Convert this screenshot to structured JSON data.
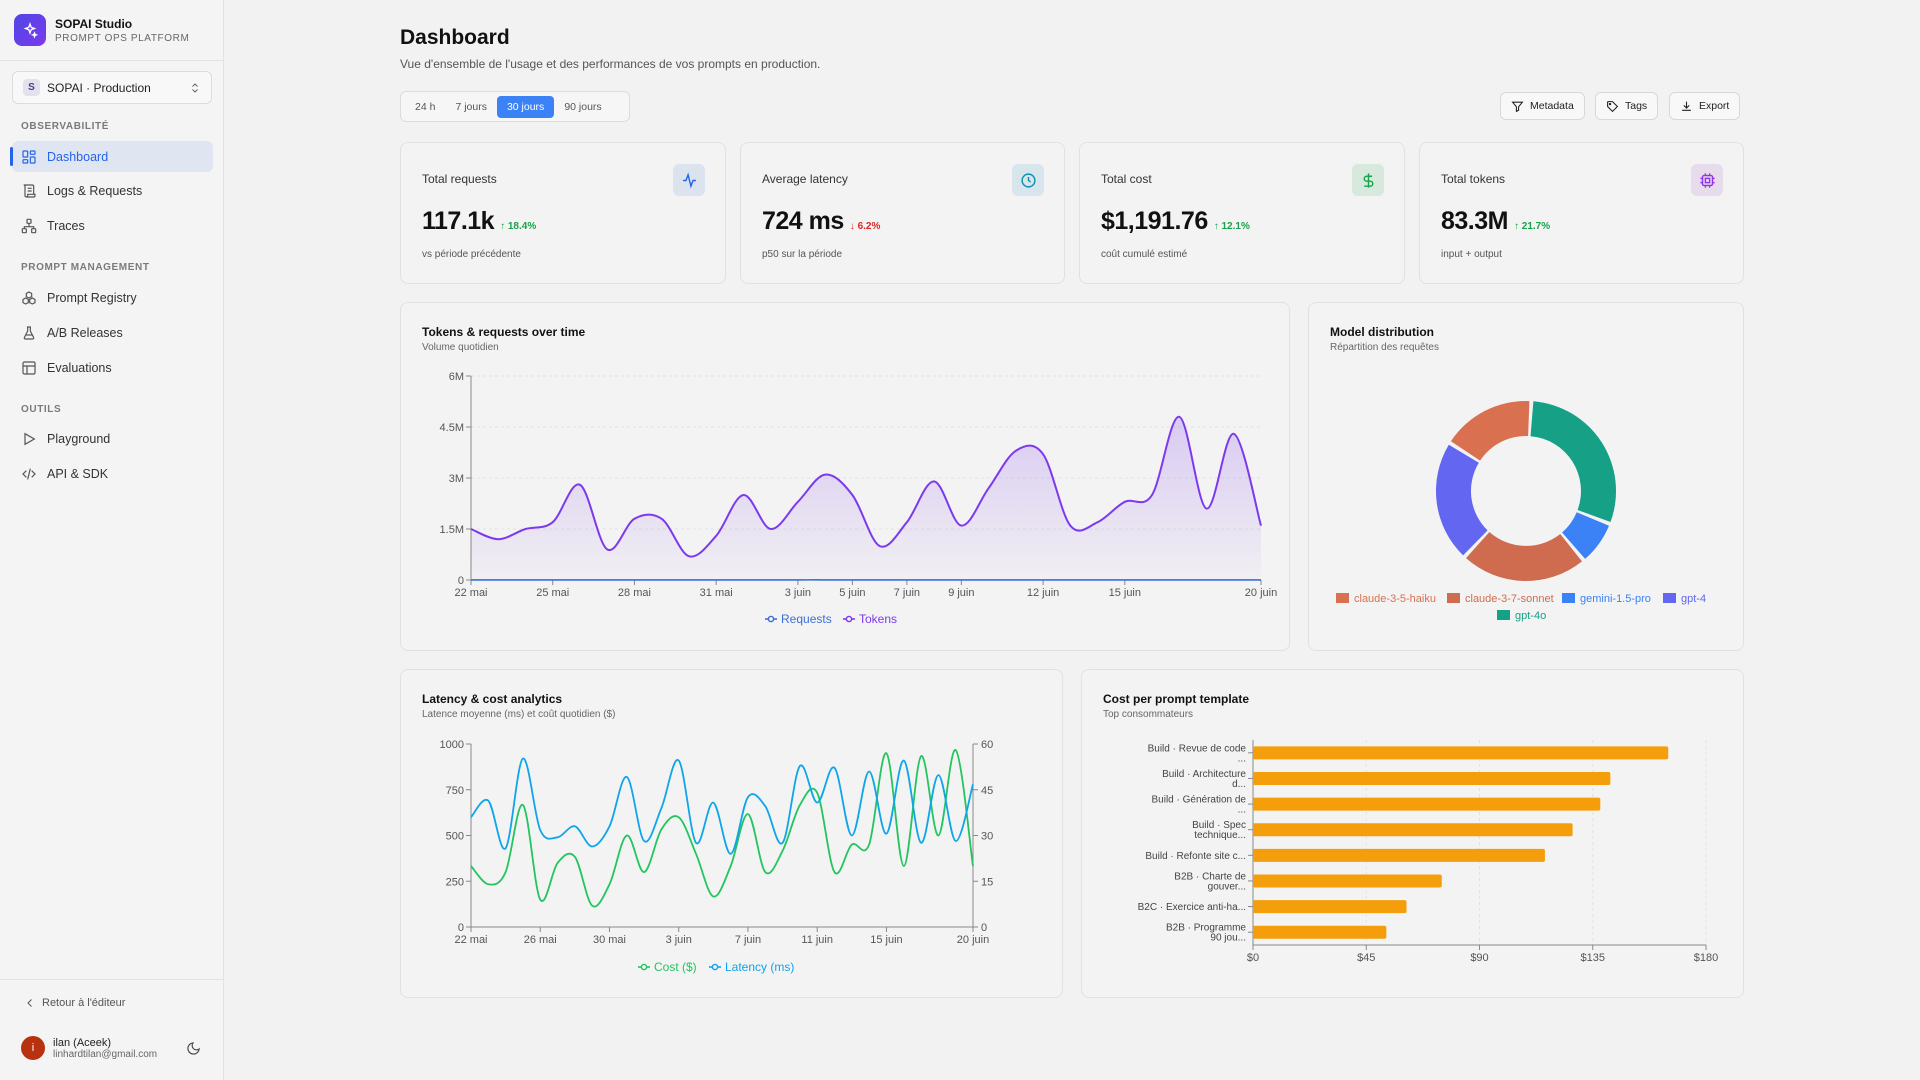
{
  "app": {
    "name": "SOPAI Studio",
    "subtitle": "PROMPT OPS PLATFORM"
  },
  "workspace": {
    "badge": "S",
    "name": "SOPAI · Production"
  },
  "sidebar": {
    "sections": [
      {
        "label": "OBSERVABILITÉ",
        "items": [
          {
            "label": "Dashboard",
            "icon": "dashboard-icon",
            "active": true
          },
          {
            "label": "Logs & Requests",
            "icon": "logs-icon"
          },
          {
            "label": "Traces",
            "icon": "traces-icon"
          }
        ]
      },
      {
        "label": "PROMPT MANAGEMENT",
        "items": [
          {
            "label": "Prompt Registry",
            "icon": "registry-icon"
          },
          {
            "label": "A/B Releases",
            "icon": "flask-icon"
          },
          {
            "label": "Evaluations",
            "icon": "table-icon"
          }
        ]
      },
      {
        "label": "OUTILS",
        "items": [
          {
            "label": "Playground",
            "icon": "play-icon"
          },
          {
            "label": "API & SDK",
            "icon": "code-icon"
          }
        ]
      }
    ],
    "back_link": "Retour à l'éditeur",
    "user": {
      "initial": "i",
      "name": "ilan (Aceek)",
      "email": "linhardtilan@gmail.com"
    }
  },
  "header": {
    "title": "Dashboard",
    "subtitle": "Vue d'ensemble de l'usage et des performances de vos prompts en production.",
    "ranges": [
      "24 h",
      "7 jours",
      "30 jours",
      "90 jours"
    ],
    "active_range": "30 jours",
    "buttons": {
      "metadata": "Metadata",
      "tags": "Tags",
      "export": "Export"
    }
  },
  "kpis": [
    {
      "label": "Total requests",
      "value": "117.1k",
      "delta": "↑ 18.4%",
      "delta_color": "#16a34a",
      "note": "vs période précédente",
      "icon": "activity-icon",
      "icon_bg": "#dbe3ee",
      "icon_color": "#2563eb"
    },
    {
      "label": "Average latency",
      "value": "724 ms",
      "delta": "↓ 6.2%",
      "delta_color": "#dc2626",
      "note": "p50 sur la période",
      "icon": "clock-icon",
      "icon_bg": "#d6e6ec",
      "icon_color": "#0891b2"
    },
    {
      "label": "Total cost",
      "value": "$1,191.76",
      "delta": "↑ 12.1%",
      "delta_color": "#16a34a",
      "note": "coût cumulé estimé",
      "icon": "dollar-icon",
      "icon_bg": "#d6e9dc",
      "icon_color": "#16a34a"
    },
    {
      "label": "Total tokens",
      "value": "83.3M",
      "delta": "↑ 21.7%",
      "delta_color": "#16a34a",
      "note": "input + output",
      "icon": "chip-icon",
      "icon_bg": "#e6dcec",
      "icon_color": "#9333ea"
    }
  ],
  "charts": {
    "tokens": {
      "title": "Tokens & requests over time",
      "subtitle": "Volume quotidien"
    },
    "models": {
      "title": "Model distribution",
      "subtitle": "Répartition des requêtes"
    },
    "latency": {
      "title": "Latency & cost analytics",
      "subtitle": "Latence moyenne (ms) et coût quotidien ($)"
    },
    "cost": {
      "title": "Cost per prompt template",
      "subtitle": "Top consommateurs"
    }
  },
  "chart_data": [
    {
      "type": "area",
      "title": "Tokens & requests over time",
      "xticks": [
        "22 mai",
        "25 mai",
        "28 mai",
        "31 mai",
        "3 juin",
        "5 juin",
        "7 juin",
        "9 juin",
        "12 juin",
        "15 juin",
        "20 juin"
      ],
      "xtick_days": [
        0,
        3,
        6,
        9,
        12,
        14,
        16,
        18,
        21,
        24,
        29
      ],
      "yticks": [
        "0",
        "1.5M",
        "3M",
        "4.5M",
        "6M"
      ],
      "ylim": [
        0,
        6000000
      ],
      "series": [
        {
          "name": "Requests",
          "color": "#3b6fd4",
          "values": [
            4000,
            3800,
            4100,
            3900,
            4200,
            4000,
            3700,
            3900,
            4100,
            4300,
            4000,
            3800,
            4200,
            4400,
            4100,
            3900,
            4000,
            4200,
            4300,
            4100,
            3900,
            4000,
            4200,
            4100,
            3800,
            4000,
            4300,
            4100,
            3900,
            4000
          ]
        },
        {
          "name": "Tokens",
          "color": "#7c3aed",
          "values": [
            1500000,
            1200000,
            1500000,
            1700000,
            2800000,
            900000,
            1800000,
            1800000,
            700000,
            1300000,
            2500000,
            1500000,
            2300000,
            3100000,
            2500000,
            1000000,
            1700000,
            2900000,
            1600000,
            2700000,
            3800000,
            3700000,
            1600000,
            1700000,
            2300000,
            2500000,
            4800000,
            2100000,
            4300000,
            1600000
          ]
        }
      ],
      "legend": [
        "Requests",
        "Tokens"
      ]
    },
    {
      "type": "pie",
      "title": "Model distribution",
      "labels": [
        "gpt-4o",
        "gemini-1.5-pro",
        "claude-3-7-sonnet",
        "gpt-4",
        "claude-3-5-haiku"
      ],
      "values": [
        30,
        8,
        23,
        22,
        17
      ],
      "colors": [
        "#16a085",
        "#3b82f6",
        "#cf6c4f",
        "#6366f1",
        "#d9704f"
      ],
      "legend": [
        "claude-3-5-haiku",
        "claude-3-7-sonnet",
        "gemini-1.5-pro",
        "gpt-4",
        "gpt-4o"
      ]
    },
    {
      "type": "line",
      "title": "Latency & cost analytics",
      "xticks": [
        "22 mai",
        "26 mai",
        "30 mai",
        "3 juin",
        "7 juin",
        "11 juin",
        "15 juin",
        "20 juin"
      ],
      "xtick_days": [
        0,
        4,
        8,
        12,
        16,
        20,
        24,
        29
      ],
      "yticks_left": [
        "0",
        "250",
        "500",
        "750",
        "1000"
      ],
      "yticks_right": [
        "0",
        "15",
        "30",
        "45",
        "60"
      ],
      "series": [
        {
          "name": "Cost ($)",
          "axis": "right",
          "color": "#22c55e",
          "values": [
            20,
            14,
            18,
            40,
            9,
            21,
            23,
            7,
            14,
            30,
            18,
            32,
            36,
            24,
            10,
            20,
            37,
            18,
            25,
            40,
            44,
            18,
            27,
            27,
            57,
            20,
            56,
            30,
            58,
            20
          ]
        },
        {
          "name": "Latency (ms)",
          "axis": "left",
          "color": "#0ea5e9",
          "values": [
            600,
            690,
            430,
            920,
            530,
            490,
            550,
            440,
            550,
            820,
            470,
            650,
            910,
            460,
            680,
            400,
            710,
            660,
            460,
            880,
            680,
            870,
            500,
            850,
            510,
            910,
            460,
            830,
            470,
            780
          ]
        }
      ],
      "legend": [
        "Cost ($)",
        "Latency (ms)"
      ]
    },
    {
      "type": "bar",
      "title": "Cost per prompt template",
      "categories": [
        [
          "Build · Revue de code",
          "..."
        ],
        [
          "Build · Architecture",
          "d..."
        ],
        [
          "Build · Génération de",
          "..."
        ],
        [
          "Build · Spec",
          "technique..."
        ],
        [
          "Build · Refonte site c..."
        ],
        [
          "B2B · Charte de",
          "gouver..."
        ],
        [
          "B2C · Exercice anti-ha..."
        ],
        [
          "B2B · Programme",
          "90 jou..."
        ]
      ],
      "values": [
        165,
        142,
        138,
        127,
        116,
        75,
        61,
        53
      ],
      "color": "#f59e0b",
      "xticks": [
        "$0",
        "$45",
        "$90",
        "$135",
        "$180"
      ],
      "xlim": [
        0,
        180
      ]
    }
  ]
}
